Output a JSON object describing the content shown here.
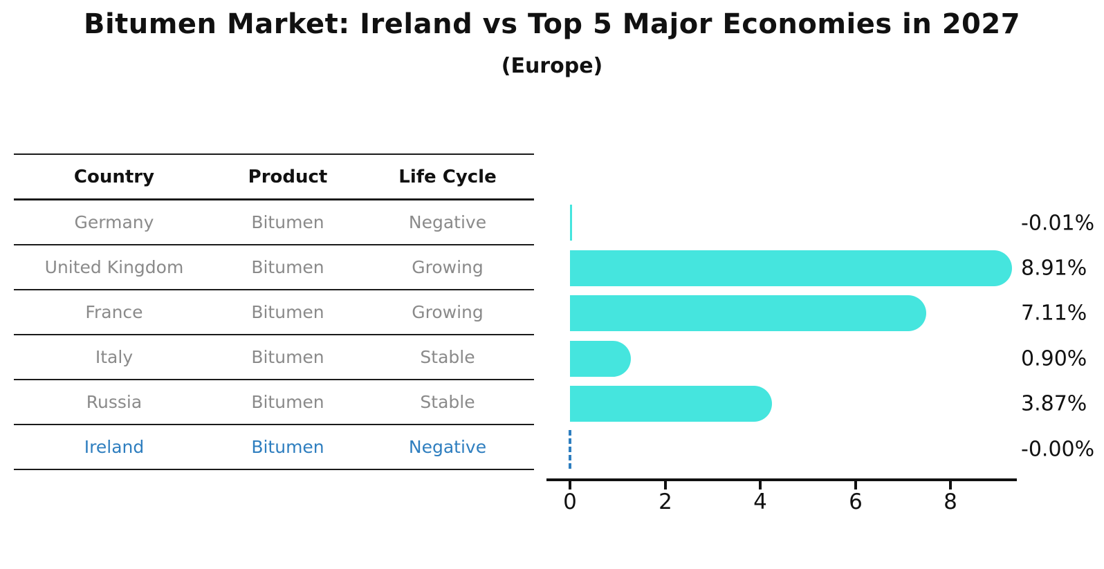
{
  "title": "Bitumen Market: Ireland vs Top 5 Major Economies in 2027",
  "subtitle": "(Europe)",
  "table": {
    "headers": [
      "Country",
      "Product",
      "Life Cycle"
    ],
    "rows": [
      {
        "country": "Germany",
        "product": "Bitumen",
        "life_cycle": "Negative",
        "highlight": false
      },
      {
        "country": "United Kingdom",
        "product": "Bitumen",
        "life_cycle": "Growing",
        "highlight": false
      },
      {
        "country": "France",
        "product": "Bitumen",
        "life_cycle": "Growing",
        "highlight": false
      },
      {
        "country": "Italy",
        "product": "Bitumen",
        "life_cycle": "Stable",
        "highlight": false
      },
      {
        "country": "Russia",
        "product": "Bitumen",
        "life_cycle": "Stable",
        "highlight": false
      },
      {
        "country": "Ireland",
        "product": "Bitumen",
        "life_cycle": "Negative",
        "highlight": true
      }
    ]
  },
  "chart_data": {
    "type": "bar",
    "orientation": "horizontal",
    "title": "Bitumen Market: Ireland vs Top 5 Major Economies in 2027",
    "subtitle": "(Europe)",
    "categories": [
      "Germany",
      "United Kingdom",
      "France",
      "Italy",
      "Russia",
      "Ireland"
    ],
    "values": [
      -0.01,
      8.91,
      7.11,
      0.9,
      3.87,
      -0.0
    ],
    "value_labels": [
      "-0.01%",
      "8.91%",
      "7.11%",
      "0.90%",
      "3.87%",
      "-0.00%"
    ],
    "xticks": [
      "0",
      "2",
      "4",
      "6",
      "8"
    ],
    "xlim": [
      0,
      9.35
    ],
    "grid": false,
    "legend": false,
    "bar_color": "#45e5de",
    "highlight_color": "#2e7ebf",
    "text_color": "#111111",
    "muted_text_color": "#8a8a8a"
  }
}
